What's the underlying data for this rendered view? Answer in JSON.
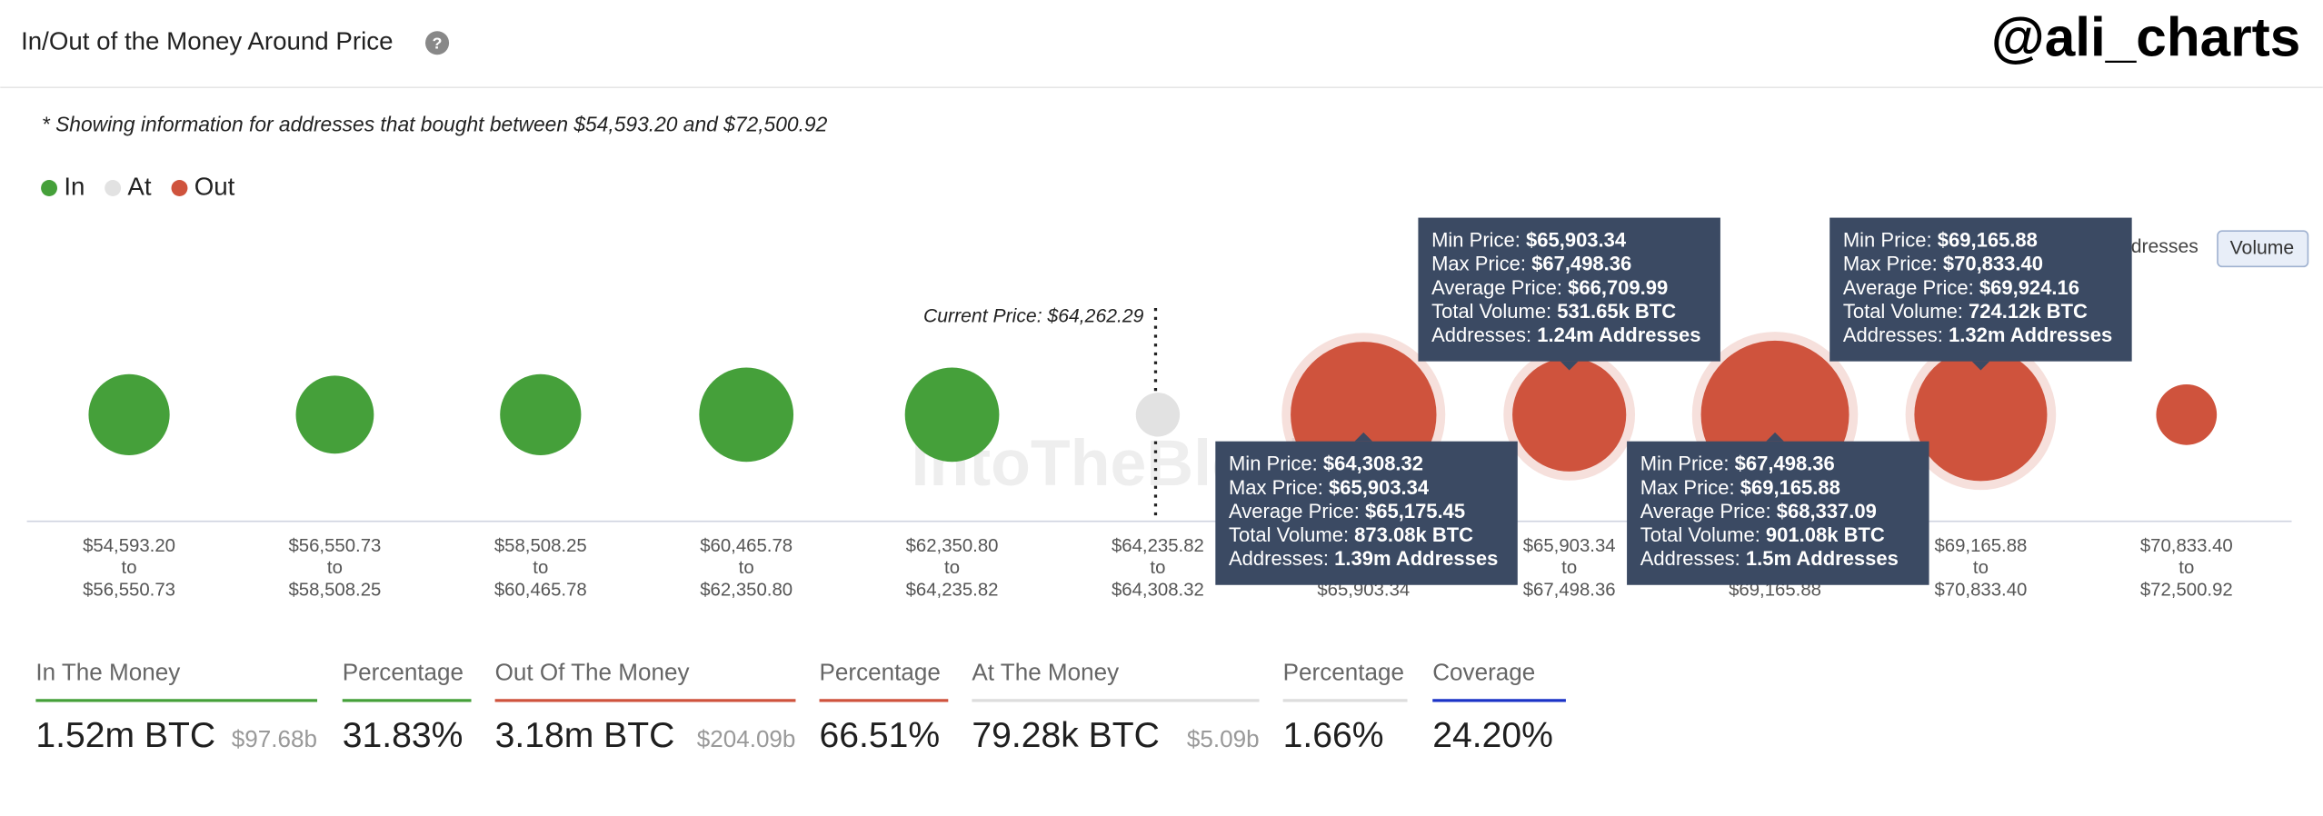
{
  "header": {
    "title": "In/Out of the Money Around Price",
    "help": "?",
    "handle": "@ali_charts"
  },
  "note": "* Showing information for addresses that bought between $54,593.20 and $72,500.92",
  "legend": [
    {
      "label": "In",
      "color": "#45a03a"
    },
    {
      "label": "At",
      "color": "#e2e2e2"
    },
    {
      "label": "Out",
      "color": "#cf533d"
    }
  ],
  "toggle": [
    "Addresses",
    "Volume"
  ],
  "current_price": "Current Price: $64,262.29",
  "watermark": "IntoTheBlock",
  "range_connector": "to",
  "bounds": [
    "$54,593.20",
    "$56,550.73",
    "$58,508.25",
    "$60,465.78",
    "$62,350.80",
    "$64,235.82",
    "$64,308.32",
    "$65,903.34",
    "$67,498.36",
    "$69,165.88",
    "$70,833.40",
    "$72,500.92"
  ],
  "bubbles": [
    {
      "group": "In",
      "volume_k": 270
    },
    {
      "group": "In",
      "volume_k": 250
    },
    {
      "group": "In",
      "volume_k": 270
    },
    {
      "group": "In",
      "volume_k": 365
    },
    {
      "group": "In",
      "volume_k": 365
    },
    {
      "group": "At",
      "volume_k": 79.28
    },
    {
      "group": "Out",
      "volume_k": 873.08,
      "tooltip": [
        {
          "label": "Min Price:",
          "value": "$64,308.32"
        },
        {
          "label": "Max Price:",
          "value": "$65,903.34"
        },
        {
          "label": "Average Price:",
          "value": "$65,175.45"
        },
        {
          "label": "Total Volume:",
          "value": "873.08k BTC"
        },
        {
          "label": "Addresses:",
          "value": "1.39m Addresses"
        }
      ]
    },
    {
      "group": "Out",
      "volume_k": 531.65,
      "tooltip": [
        {
          "label": "Min Price:",
          "value": "$65,903.34"
        },
        {
          "label": "Max Price:",
          "value": "$67,498.36"
        },
        {
          "label": "Average Price:",
          "value": "$66,709.99"
        },
        {
          "label": "Total Volume:",
          "value": "531.65k BTC"
        },
        {
          "label": "Addresses:",
          "value": "1.24m Addresses"
        }
      ]
    },
    {
      "group": "Out",
      "volume_k": 901.08,
      "tooltip": [
        {
          "label": "Min Price:",
          "value": "$67,498.36"
        },
        {
          "label": "Max Price:",
          "value": "$69,165.88"
        },
        {
          "label": "Average Price:",
          "value": "$68,337.09"
        },
        {
          "label": "Total Volume:",
          "value": "901.08k BTC"
        },
        {
          "label": "Addresses:",
          "value": "1.5m Addresses"
        }
      ]
    },
    {
      "group": "Out",
      "volume_k": 724.12,
      "tooltip": [
        {
          "label": "Min Price:",
          "value": "$69,165.88"
        },
        {
          "label": "Max Price:",
          "value": "$70,833.40"
        },
        {
          "label": "Average Price:",
          "value": "$69,924.16"
        },
        {
          "label": "Total Volume:",
          "value": "724.12k BTC"
        },
        {
          "label": "Addresses:",
          "value": "1.32m Addresses"
        }
      ]
    },
    {
      "group": "Out",
      "volume_k": 151
    }
  ],
  "stats": [
    {
      "label": "In The Money",
      "value": "1.52m BTC",
      "sub": "$97.68b",
      "color": "#45a03a"
    },
    {
      "label": "Percentage",
      "value": "31.83%",
      "color": "#45a03a"
    },
    {
      "label": "Out Of The Money",
      "value": "3.18m BTC",
      "sub": "$204.09b",
      "color": "#cf533d"
    },
    {
      "label": "Percentage",
      "value": "66.51%",
      "color": "#cf533d"
    },
    {
      "label": "At The Money",
      "value": "79.28k BTC",
      "sub": "$5.09b",
      "color": "#dddddd"
    },
    {
      "label": "Percentage",
      "value": "1.66%",
      "color": "#dddddd"
    },
    {
      "label": "Coverage",
      "value": "24.20%",
      "color": "#1b33c7"
    }
  ]
}
